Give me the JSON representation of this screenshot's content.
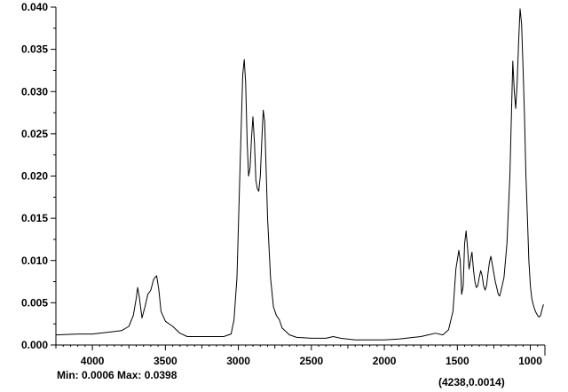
{
  "chart_data": {
    "type": "line",
    "title": "",
    "xlabel": "",
    "ylabel": "",
    "xlim": [
      4250,
      900
    ],
    "ylim": [
      0,
      0.04
    ],
    "grid": false,
    "x_ticks": [
      4000,
      3500,
      3000,
      2500,
      2000,
      1500,
      1000
    ],
    "x_tick_labels": [
      "4000",
      "3500",
      "3000",
      "2500",
      "2000",
      "1500",
      "1000"
    ],
    "y_ticks": [
      0.0,
      0.005,
      0.01,
      0.015,
      0.02,
      0.025,
      0.03,
      0.035,
      0.04
    ],
    "y_tick_labels": [
      "0.000",
      "0.005",
      "0.010",
      "0.015",
      "0.020",
      "0.025",
      "0.030",
      "0.035",
      "0.040"
    ],
    "series": [
      {
        "color": "#000000",
        "x": [
          4250,
          4100,
          4000,
          3900,
          3800,
          3750,
          3720,
          3700,
          3690,
          3680,
          3660,
          3640,
          3620,
          3600,
          3580,
          3560,
          3545,
          3530,
          3500,
          3450,
          3400,
          3350,
          3300,
          3200,
          3100,
          3050,
          3030,
          3010,
          2990,
          2970,
          2960,
          2950,
          2940,
          2930,
          2920,
          2910,
          2900,
          2890,
          2880,
          2870,
          2860,
          2850,
          2840,
          2830,
          2820,
          2810,
          2800,
          2780,
          2760,
          2740,
          2720,
          2700,
          2650,
          2600,
          2500,
          2400,
          2350,
          2300,
          2200,
          2100,
          2000,
          1900,
          1800,
          1750,
          1700,
          1650,
          1600,
          1560,
          1530,
          1510,
          1490,
          1480,
          1470,
          1460,
          1450,
          1440,
          1430,
          1420,
          1410,
          1400,
          1390,
          1380,
          1370,
          1360,
          1350,
          1340,
          1330,
          1320,
          1310,
          1300,
          1290,
          1280,
          1270,
          1260,
          1250,
          1240,
          1230,
          1220,
          1210,
          1200,
          1180,
          1160,
          1140,
          1120,
          1110,
          1100,
          1090,
          1080,
          1070,
          1060,
          1050,
          1040,
          1030,
          1020,
          1010,
          1000,
          990,
          980,
          970,
          960,
          950,
          940,
          930,
          920,
          910
        ],
        "y": [
          0.0012,
          0.0013,
          0.0013,
          0.0015,
          0.0017,
          0.0022,
          0.0035,
          0.0055,
          0.0068,
          0.0058,
          0.0032,
          0.0045,
          0.006,
          0.0065,
          0.0078,
          0.0082,
          0.0065,
          0.004,
          0.0028,
          0.0022,
          0.0014,
          0.001,
          0.001,
          0.001,
          0.001,
          0.0013,
          0.003,
          0.008,
          0.02,
          0.032,
          0.0338,
          0.031,
          0.024,
          0.02,
          0.021,
          0.0245,
          0.027,
          0.024,
          0.0195,
          0.0185,
          0.0182,
          0.02,
          0.024,
          0.0278,
          0.0265,
          0.021,
          0.015,
          0.008,
          0.0045,
          0.0035,
          0.003,
          0.002,
          0.0012,
          0.0009,
          0.0008,
          0.0008,
          0.001,
          0.0008,
          0.0006,
          0.0006,
          0.0006,
          0.0007,
          0.0009,
          0.001,
          0.0012,
          0.0014,
          0.0012,
          0.0018,
          0.004,
          0.009,
          0.0112,
          0.01,
          0.006,
          0.007,
          0.012,
          0.0135,
          0.0115,
          0.009,
          0.01,
          0.011,
          0.009,
          0.0075,
          0.0068,
          0.007,
          0.008,
          0.0088,
          0.0082,
          0.007,
          0.0065,
          0.007,
          0.0085,
          0.0098,
          0.0105,
          0.0095,
          0.0085,
          0.0075,
          0.0068,
          0.006,
          0.0058,
          0.0065,
          0.008,
          0.012,
          0.02,
          0.0336,
          0.03,
          0.028,
          0.031,
          0.036,
          0.0398,
          0.038,
          0.033,
          0.027,
          0.02,
          0.015,
          0.01,
          0.007,
          0.0055,
          0.0048,
          0.0042,
          0.0038,
          0.0035,
          0.0033,
          0.0035,
          0.0042,
          0.0048
        ]
      }
    ]
  },
  "status": {
    "minmax": "Min: 0.0006 Max: 0.0398",
    "cursor": "(4238,0.0014)"
  }
}
